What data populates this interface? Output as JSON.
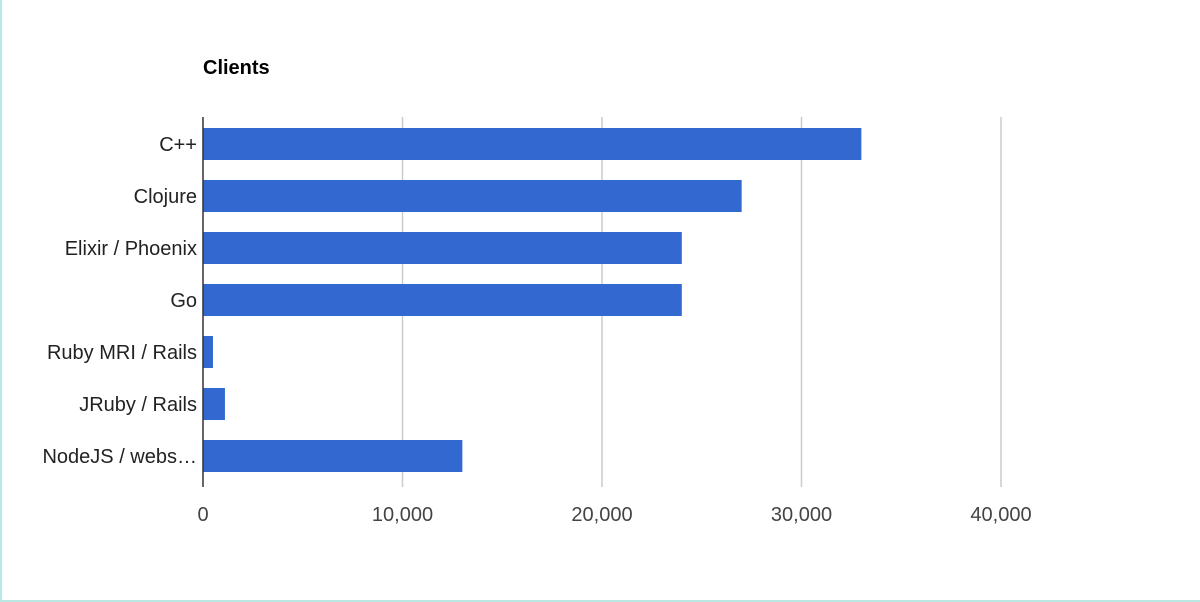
{
  "chart_data": {
    "type": "bar",
    "orientation": "horizontal",
    "title": "Clients",
    "xlabel": "",
    "ylabel": "",
    "categories": [
      "C++",
      "Clojure",
      "Elixir / Phoenix",
      "Go",
      "Ruby MRI / Rails",
      "JRuby / Rails",
      "NodeJS / webs…"
    ],
    "values": [
      33000,
      27000,
      24000,
      24000,
      500,
      1100,
      13000
    ],
    "xlim": [
      0,
      50000
    ],
    "x_ticks": [
      0,
      10000,
      20000,
      30000,
      40000
    ],
    "x_tick_labels": [
      "0",
      "10,000",
      "20,000",
      "30,000",
      "40,000"
    ],
    "grid": true,
    "legend": "none",
    "colors": {
      "bar": "#3268cf",
      "grid": "#cccccc",
      "axis": "#333333"
    }
  }
}
